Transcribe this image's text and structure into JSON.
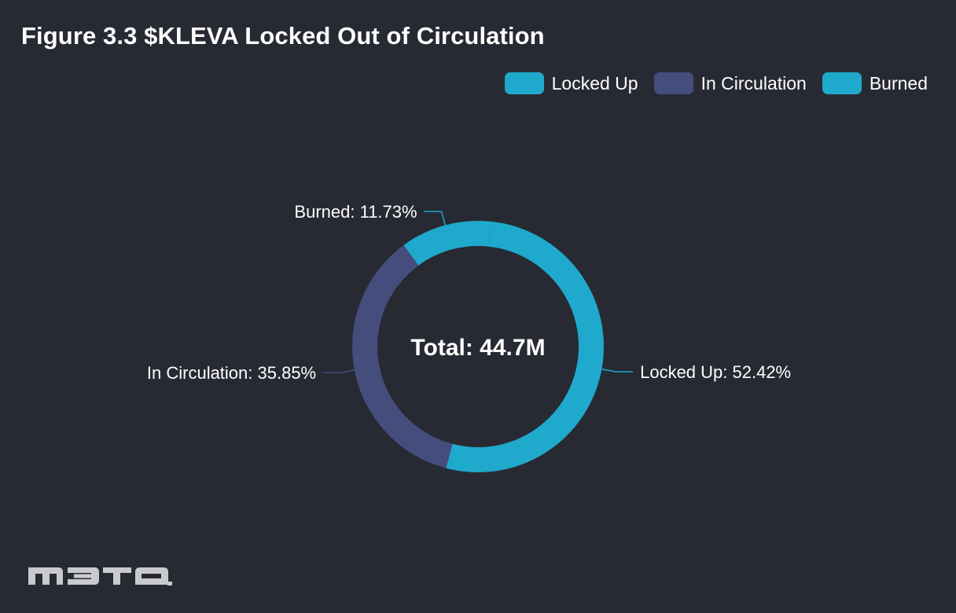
{
  "chart_data": {
    "type": "pie",
    "title": "Figure 3.3 $KLEVA Locked Out of Circulation",
    "center_label": "Total: 44.7M",
    "slices": [
      {
        "name": "Locked Up",
        "value": 52.42,
        "label": "Locked Up: 52.42%",
        "color": "#1fa9cc"
      },
      {
        "name": "In Circulation",
        "value": 35.85,
        "label": "In Circulation: 35.85%",
        "color": "#454d7d"
      },
      {
        "name": "Burned",
        "value": 11.73,
        "label": "Burned: 11.73%",
        "color": "#1fa9cc"
      }
    ],
    "legend": {
      "position": "top-right",
      "items": [
        {
          "name": "Locked Up",
          "color": "#1fa9cc"
        },
        {
          "name": "In Circulation",
          "color": "#454d7d"
        },
        {
          "name": "Burned",
          "color": "#1fa9cc"
        }
      ]
    },
    "colors": {
      "background": "#272a33",
      "text": "#ffffff",
      "logo": "#c9cacd"
    }
  },
  "logo_text": "M3TA"
}
